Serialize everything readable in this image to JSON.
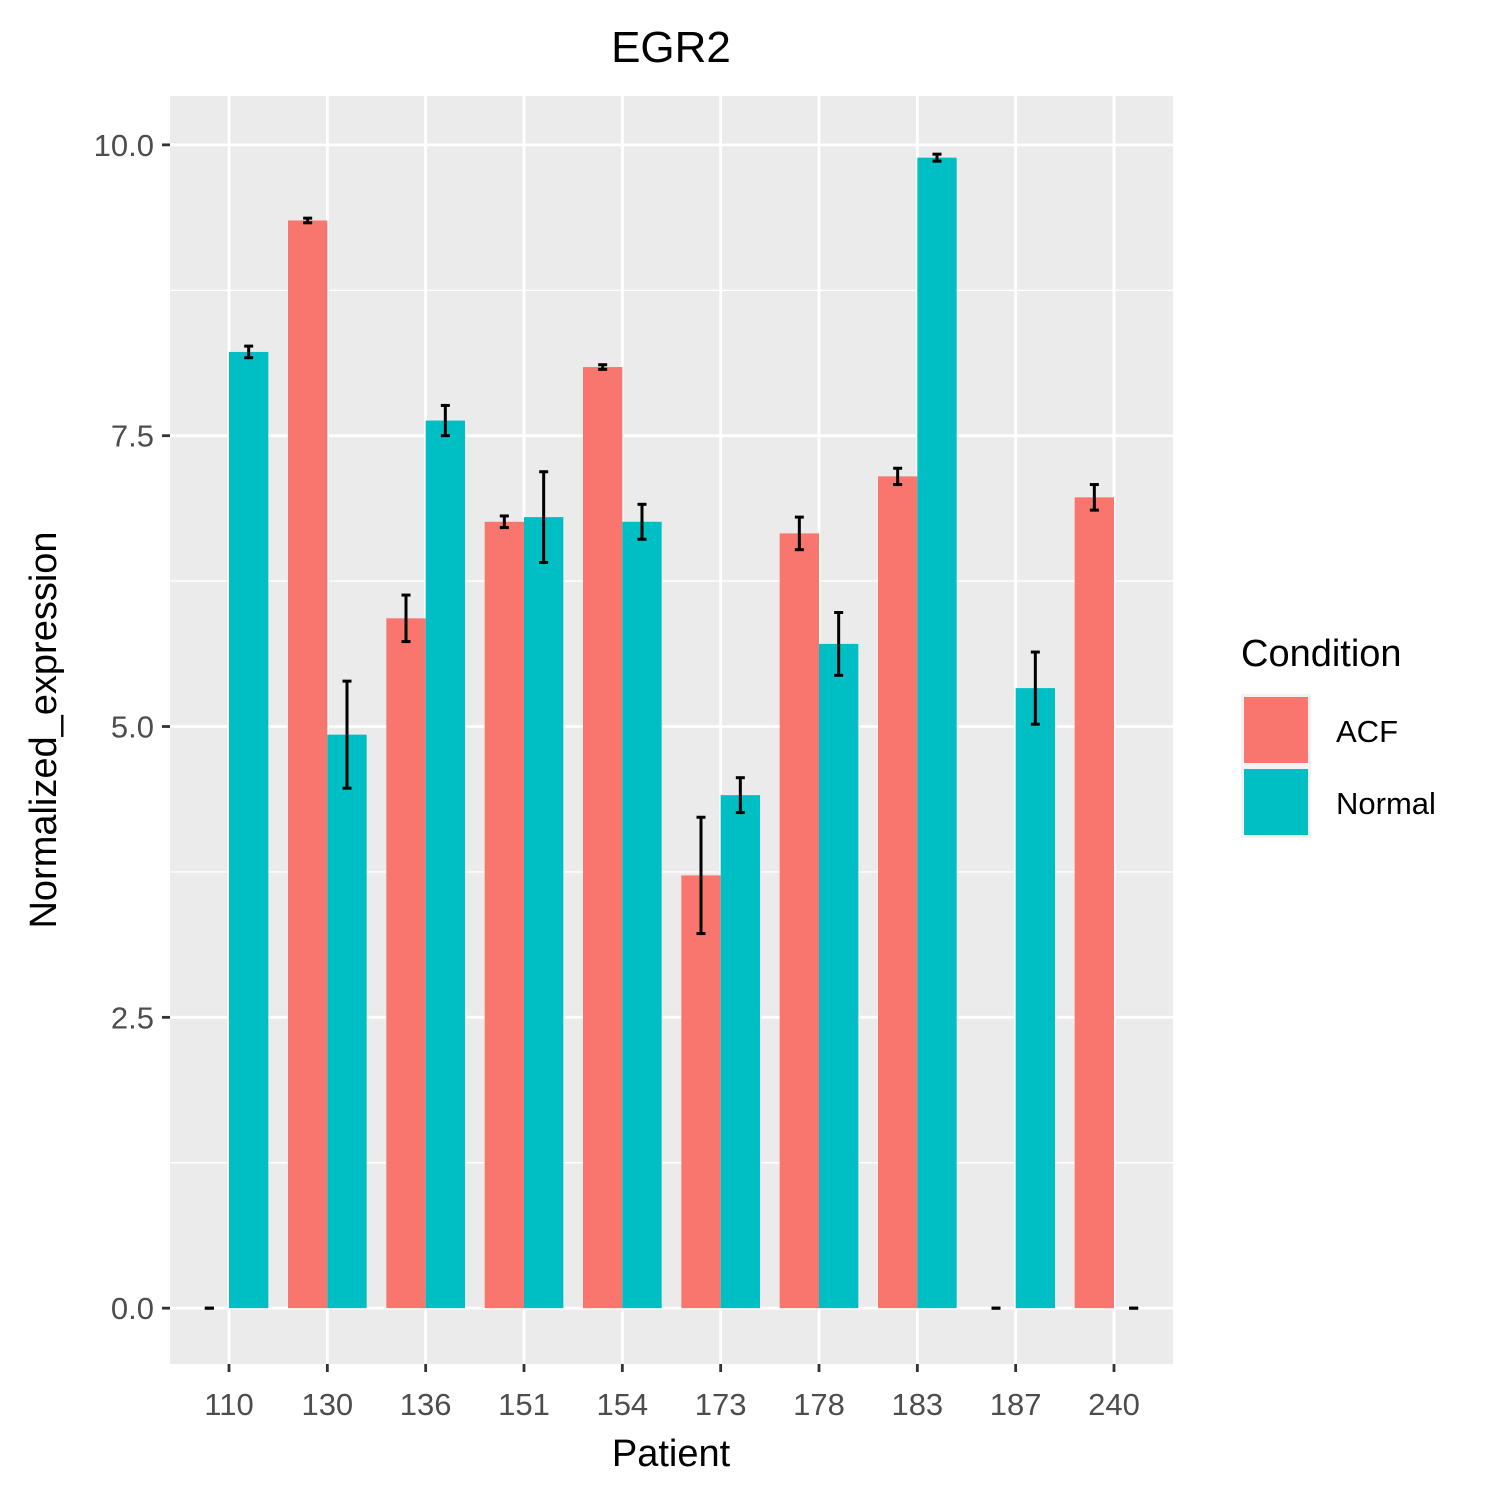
{
  "chart_data": {
    "type": "bar",
    "title": "EGR2",
    "xlabel": "Patient",
    "ylabel": "Normalized_expression",
    "categories": [
      "110",
      "130",
      "136",
      "151",
      "154",
      "173",
      "178",
      "183",
      "187",
      "240"
    ],
    "ylim": [
      -0.48,
      10.42
    ],
    "yticks": [
      "0.0",
      "2.5",
      "5.0",
      "7.5",
      "10.0"
    ],
    "grid": true,
    "legend": {
      "title": "Condition",
      "position": "right"
    },
    "series": [
      {
        "name": "ACF",
        "color": "#F8766D",
        "values": [
          0,
          9.35,
          5.93,
          6.76,
          8.09,
          3.72,
          6.66,
          7.15,
          0,
          6.97
        ],
        "error": [
          0,
          0.02,
          0.2,
          0.05,
          0.02,
          0.5,
          0.14,
          0.07,
          0,
          0.11
        ]
      },
      {
        "name": "Normal",
        "color": "#00BFC4",
        "values": [
          8.22,
          4.93,
          7.63,
          6.8,
          6.76,
          4.41,
          5.71,
          9.89,
          5.33,
          0
        ],
        "error": [
          0.05,
          0.46,
          0.13,
          0.39,
          0.15,
          0.15,
          0.27,
          0.03,
          0.31,
          0
        ]
      }
    ]
  }
}
